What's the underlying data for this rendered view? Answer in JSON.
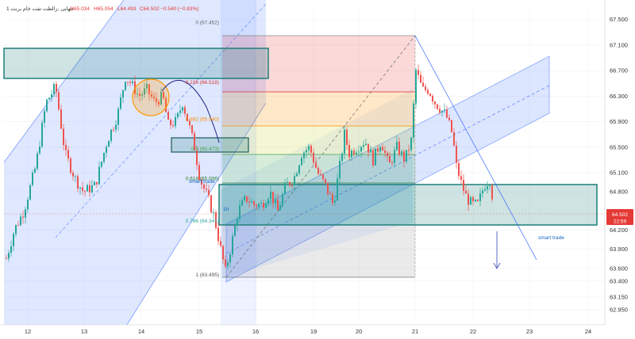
{
  "header": {
    "symbol": "جهانی ،زالطت نفت خام برنت 1",
    "open": "O65.034",
    "high": "H65.054",
    "low": "L64.493",
    "close": "C64.502",
    "change": "−0.540 (−0.83%)"
  },
  "current_price": {
    "value": "64.502",
    "time": "22:59",
    "color": "#e53935"
  },
  "colors": {
    "up": "#26a69a",
    "down": "#ef5350",
    "channel": "#2962ff",
    "zone": "#1e7f7a"
  },
  "annotations": {
    "smart_trade_1": "smart trade",
    "smart_trade_2": "smart trade",
    "timeframe": "1h"
  },
  "chart_data": {
    "type": "candlestick",
    "title": "",
    "xlabel": "",
    "ylabel": "",
    "ylim": [
      62.74,
      67.77
    ],
    "x_ticks": [
      "12",
      "13",
      "14",
      "15",
      "16",
      "19",
      "20",
      "21",
      "22",
      "23",
      "24"
    ],
    "y_ticks": [
      "67.500",
      "67.100",
      "66.700",
      "66.300",
      "65.900",
      "65.500",
      "65.100",
      "64.800",
      "64.200",
      "63.900",
      "63.600",
      "63.400",
      "63.150",
      "62.950"
    ],
    "fib_levels": [
      {
        "ratio": "0",
        "price": "67.452",
        "label": "0 (67.452)"
      },
      {
        "ratio": "0.236",
        "price": "66.518",
        "label": "0.236 (66.518)"
      },
      {
        "ratio": "0.382",
        "price": "65.940",
        "label": "0.382 (65.940)"
      },
      {
        "ratio": "0.5",
        "price": "65.473",
        "label": "0.5 (65.473)"
      },
      {
        "ratio": "0.618",
        "price": "65.006",
        "label": "0.618 (65.006)"
      },
      {
        "ratio": "0.786",
        "price": "64.341",
        "label": "0.786 (64.341)"
      },
      {
        "ratio": "1",
        "price": "63.495",
        "label": "1 (63.495)"
      }
    ],
    "waypoints": [
      [
        0,
        63.4
      ],
      [
        18,
        64.2
      ],
      [
        30,
        64.5
      ],
      [
        45,
        65.2
      ],
      [
        58,
        66.2
      ],
      [
        70,
        66.45
      ],
      [
        82,
        65.4
      ],
      [
        95,
        65.0
      ],
      [
        105,
        64.8
      ],
      [
        120,
        64.9
      ],
      [
        135,
        65.6
      ],
      [
        148,
        66.0
      ],
      [
        158,
        66.6
      ],
      [
        165,
        66.5
      ],
      [
        175,
        66.3
      ],
      [
        185,
        66.4
      ],
      [
        195,
        66.2
      ],
      [
        205,
        66.3
      ],
      [
        212,
        65.85
      ],
      [
        222,
        65.9
      ],
      [
        230,
        66.2
      ],
      [
        238,
        65.85
      ],
      [
        245,
        65.5
      ],
      [
        252,
        65.0
      ],
      [
        262,
        64.7
      ],
      [
        270,
        64.4
      ],
      [
        278,
        63.9
      ],
      [
        284,
        63.55
      ],
      [
        292,
        64.0
      ],
      [
        300,
        64.5
      ],
      [
        310,
        64.7
      ],
      [
        320,
        64.6
      ],
      [
        330,
        64.6
      ],
      [
        340,
        64.8
      ],
      [
        350,
        64.5
      ],
      [
        360,
        64.9
      ],
      [
        370,
        65.0
      ],
      [
        380,
        65.4
      ],
      [
        390,
        65.5
      ],
      [
        400,
        65.1
      ],
      [
        410,
        64.9
      ],
      [
        420,
        64.6
      ],
      [
        428,
        65.2
      ],
      [
        434,
        65.7
      ],
      [
        440,
        65.4
      ],
      [
        450,
        65.5
      ],
      [
        460,
        65.6
      ],
      [
        470,
        65.3
      ],
      [
        480,
        65.6
      ],
      [
        490,
        65.2
      ],
      [
        500,
        65.5
      ],
      [
        510,
        65.3
      ],
      [
        518,
        65.6
      ],
      [
        524,
        66.7
      ],
      [
        532,
        66.4
      ],
      [
        540,
        66.4
      ],
      [
        548,
        66.2
      ],
      [
        555,
        66.1
      ],
      [
        562,
        66.0
      ],
      [
        570,
        65.7
      ],
      [
        575,
        65.2
      ],
      [
        582,
        64.9
      ],
      [
        588,
        64.7
      ],
      [
        595,
        64.6
      ],
      [
        602,
        64.6
      ],
      [
        610,
        64.9
      ],
      [
        618,
        65.0
      ],
      [
        622,
        64.5
      ]
    ]
  }
}
